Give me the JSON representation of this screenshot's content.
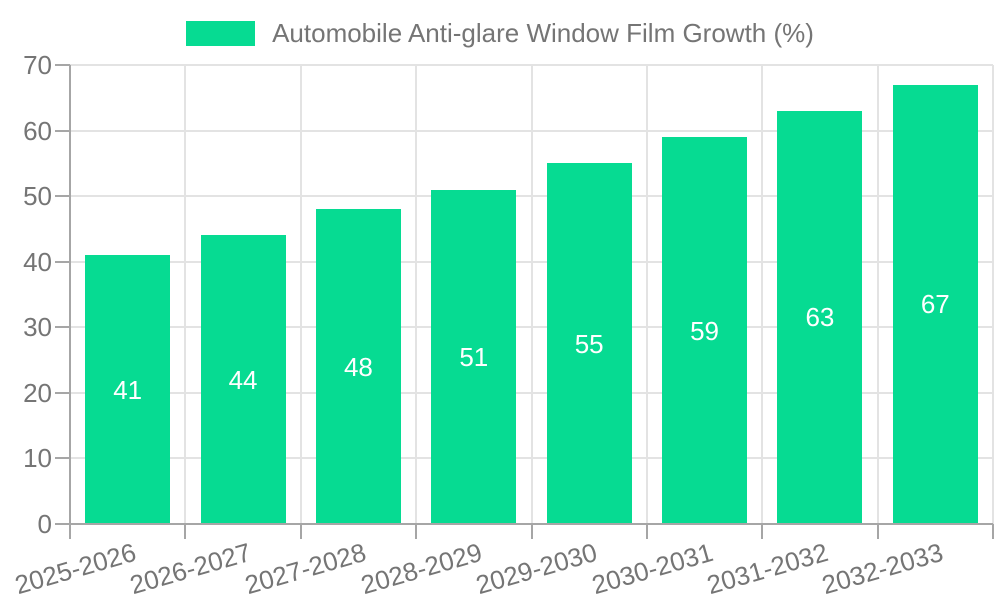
{
  "chart_data": {
    "type": "bar",
    "title": "Automobile Anti-glare Window Film Growth (%)",
    "categories": [
      "2025-2026",
      "2026-2027",
      "2027-2028",
      "2028-2029",
      "2029-2030",
      "2030-2031",
      "2031-2032",
      "2032-2033"
    ],
    "values": [
      41,
      44,
      48,
      51,
      55,
      59,
      63,
      67
    ],
    "xlabel": "",
    "ylabel": "",
    "ylim": [
      0,
      70
    ],
    "ytick_step": 10,
    "yticks": [
      0,
      10,
      20,
      30,
      40,
      50,
      60,
      70
    ],
    "grid": true,
    "legend_position": "top",
    "value_labels": "inside-center",
    "colors": {
      "bar": "#06DB92",
      "value_label": "#FFFFFF",
      "axis_text": "#757575",
      "grid_line": "#E3E3E3",
      "axis_line": "#A6A6A6",
      "background": "#FFFFFF"
    }
  }
}
